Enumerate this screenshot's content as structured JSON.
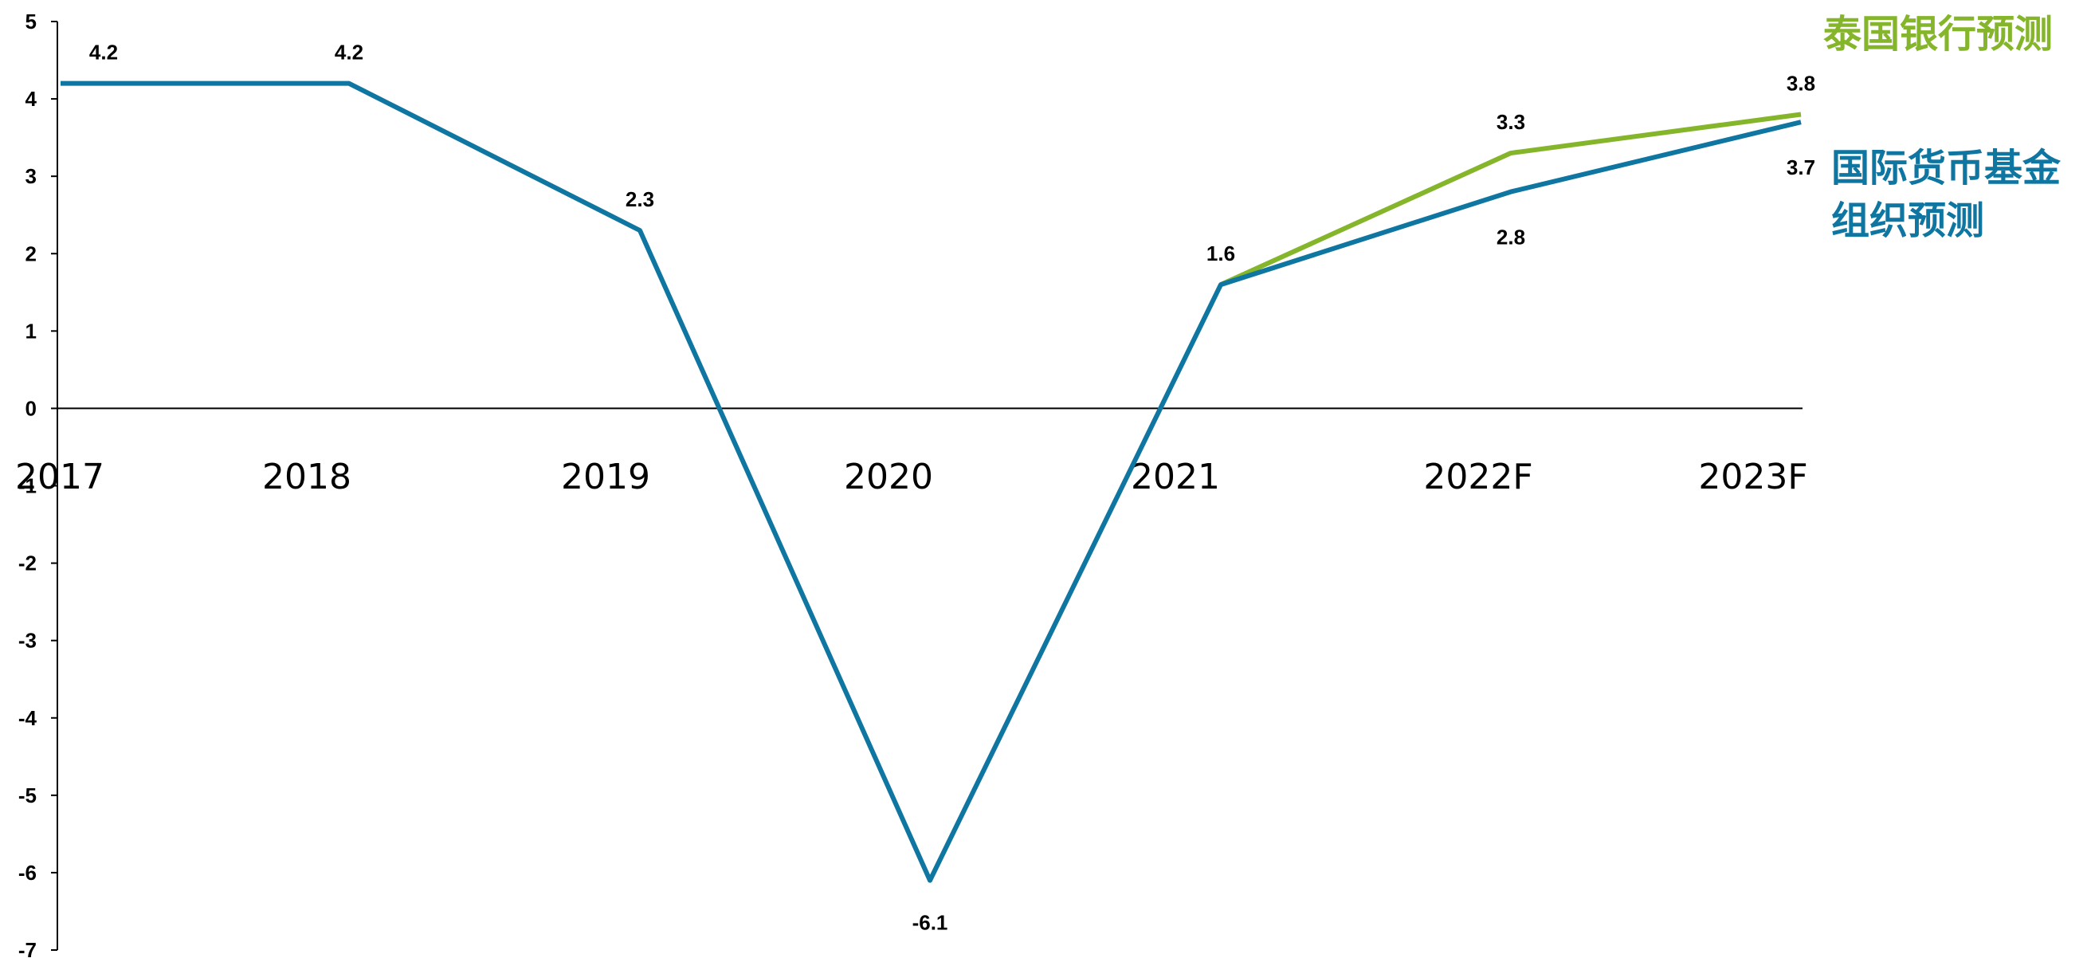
{
  "chart_data": {
    "type": "line",
    "categories": [
      "2017",
      "2018",
      "2019",
      "2020",
      "2021",
      "2022F",
      "2023F"
    ],
    "ylim": [
      -7,
      5
    ],
    "yticks": [
      5,
      4,
      3,
      2,
      1,
      0,
      -1,
      -2,
      -3,
      -4,
      -5,
      -6,
      -7
    ],
    "grid": false,
    "series": [
      {
        "name": "国际货币基金组织预测",
        "legend_lines": [
          "国际货币基金",
          "组织预测"
        ],
        "color": "#0f76a1",
        "values": [
          4.2,
          4.2,
          2.3,
          -6.1,
          1.6,
          2.8,
          3.7
        ],
        "labels": [
          "4.2",
          "4.2",
          "2.3",
          "-6.1",
          "1.6",
          "2.8",
          "3.7"
        ]
      },
      {
        "name": "泰国银行预测",
        "legend_lines": [
          "泰国银行预测"
        ],
        "color": "#84b52a",
        "values": [
          null,
          null,
          null,
          null,
          1.6,
          3.3,
          3.8
        ],
        "labels": [
          null,
          null,
          null,
          null,
          null,
          "3.3",
          "3.8"
        ]
      }
    ]
  }
}
